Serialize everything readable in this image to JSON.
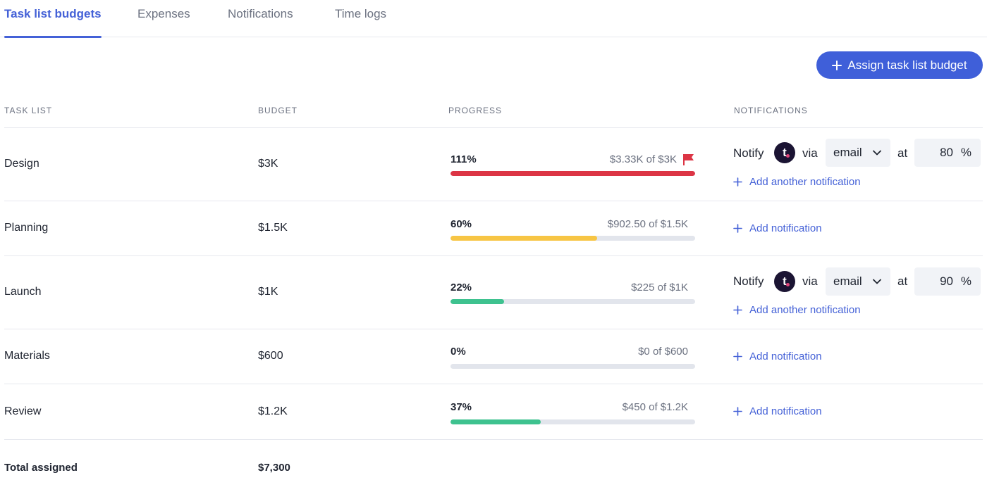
{
  "tabs": [
    {
      "label": "Task list budgets",
      "active": true
    },
    {
      "label": "Expenses",
      "active": false
    },
    {
      "label": "Notifications",
      "active": false
    },
    {
      "label": "Time logs",
      "active": false
    }
  ],
  "assign_button": {
    "label": "Assign task list budget",
    "icon": "plus-icon"
  },
  "columns": {
    "task_list": "TASK LIST",
    "budget": "BUDGET",
    "progress": "PROGRESS",
    "notifications": "NOTIFICATIONS"
  },
  "rows": [
    {
      "name": "Design",
      "budget": "$3K",
      "progress": {
        "percent_label": "111%",
        "amount": "$3.33K of $3K",
        "fraction": 1.0,
        "color": "#dc3545",
        "over_budget_flag": true
      },
      "notification": {
        "notify_label": "Notify",
        "via_label": "via",
        "channel": "email",
        "at_label": "at",
        "threshold": "80",
        "percent_sign": "%",
        "add_label": "Add another notification",
        "avatar_letter": "t"
      }
    },
    {
      "name": "Planning",
      "budget": "$1.5K",
      "progress": {
        "percent_label": "60%",
        "amount": "$902.50 of $1.5K",
        "fraction": 0.6,
        "color": "#f7c544",
        "over_budget_flag": false
      },
      "notification": {
        "add_label": "Add notification"
      }
    },
    {
      "name": "Launch",
      "budget": "$1K",
      "progress": {
        "percent_label": "22%",
        "amount": "$225 of $1K",
        "fraction": 0.22,
        "color": "#3ec28f",
        "over_budget_flag": false
      },
      "notification": {
        "notify_label": "Notify",
        "via_label": "via",
        "channel": "email",
        "at_label": "at",
        "threshold": "90",
        "percent_sign": "%",
        "add_label": "Add another notification",
        "avatar_letter": "t"
      }
    },
    {
      "name": "Materials",
      "budget": "$600",
      "progress": {
        "percent_label": "0%",
        "amount": "$0 of $600",
        "fraction": 0.0,
        "color": "#3ec28f",
        "over_budget_flag": false
      },
      "notification": {
        "add_label": "Add notification"
      }
    },
    {
      "name": "Review",
      "budget": "$1.2K",
      "progress": {
        "percent_label": "37%",
        "amount": "$450 of $1.2K",
        "fraction": 0.37,
        "color": "#3ec28f",
        "over_budget_flag": false
      },
      "notification": {
        "add_label": "Add notification"
      }
    }
  ],
  "total": {
    "label": "Total assigned",
    "value": "$7,300"
  },
  "colors": {
    "accent": "#4461d7",
    "over_budget": "#dc3545",
    "warning": "#f7c544",
    "ok": "#3ec28f",
    "track": "#e2e5ec"
  }
}
